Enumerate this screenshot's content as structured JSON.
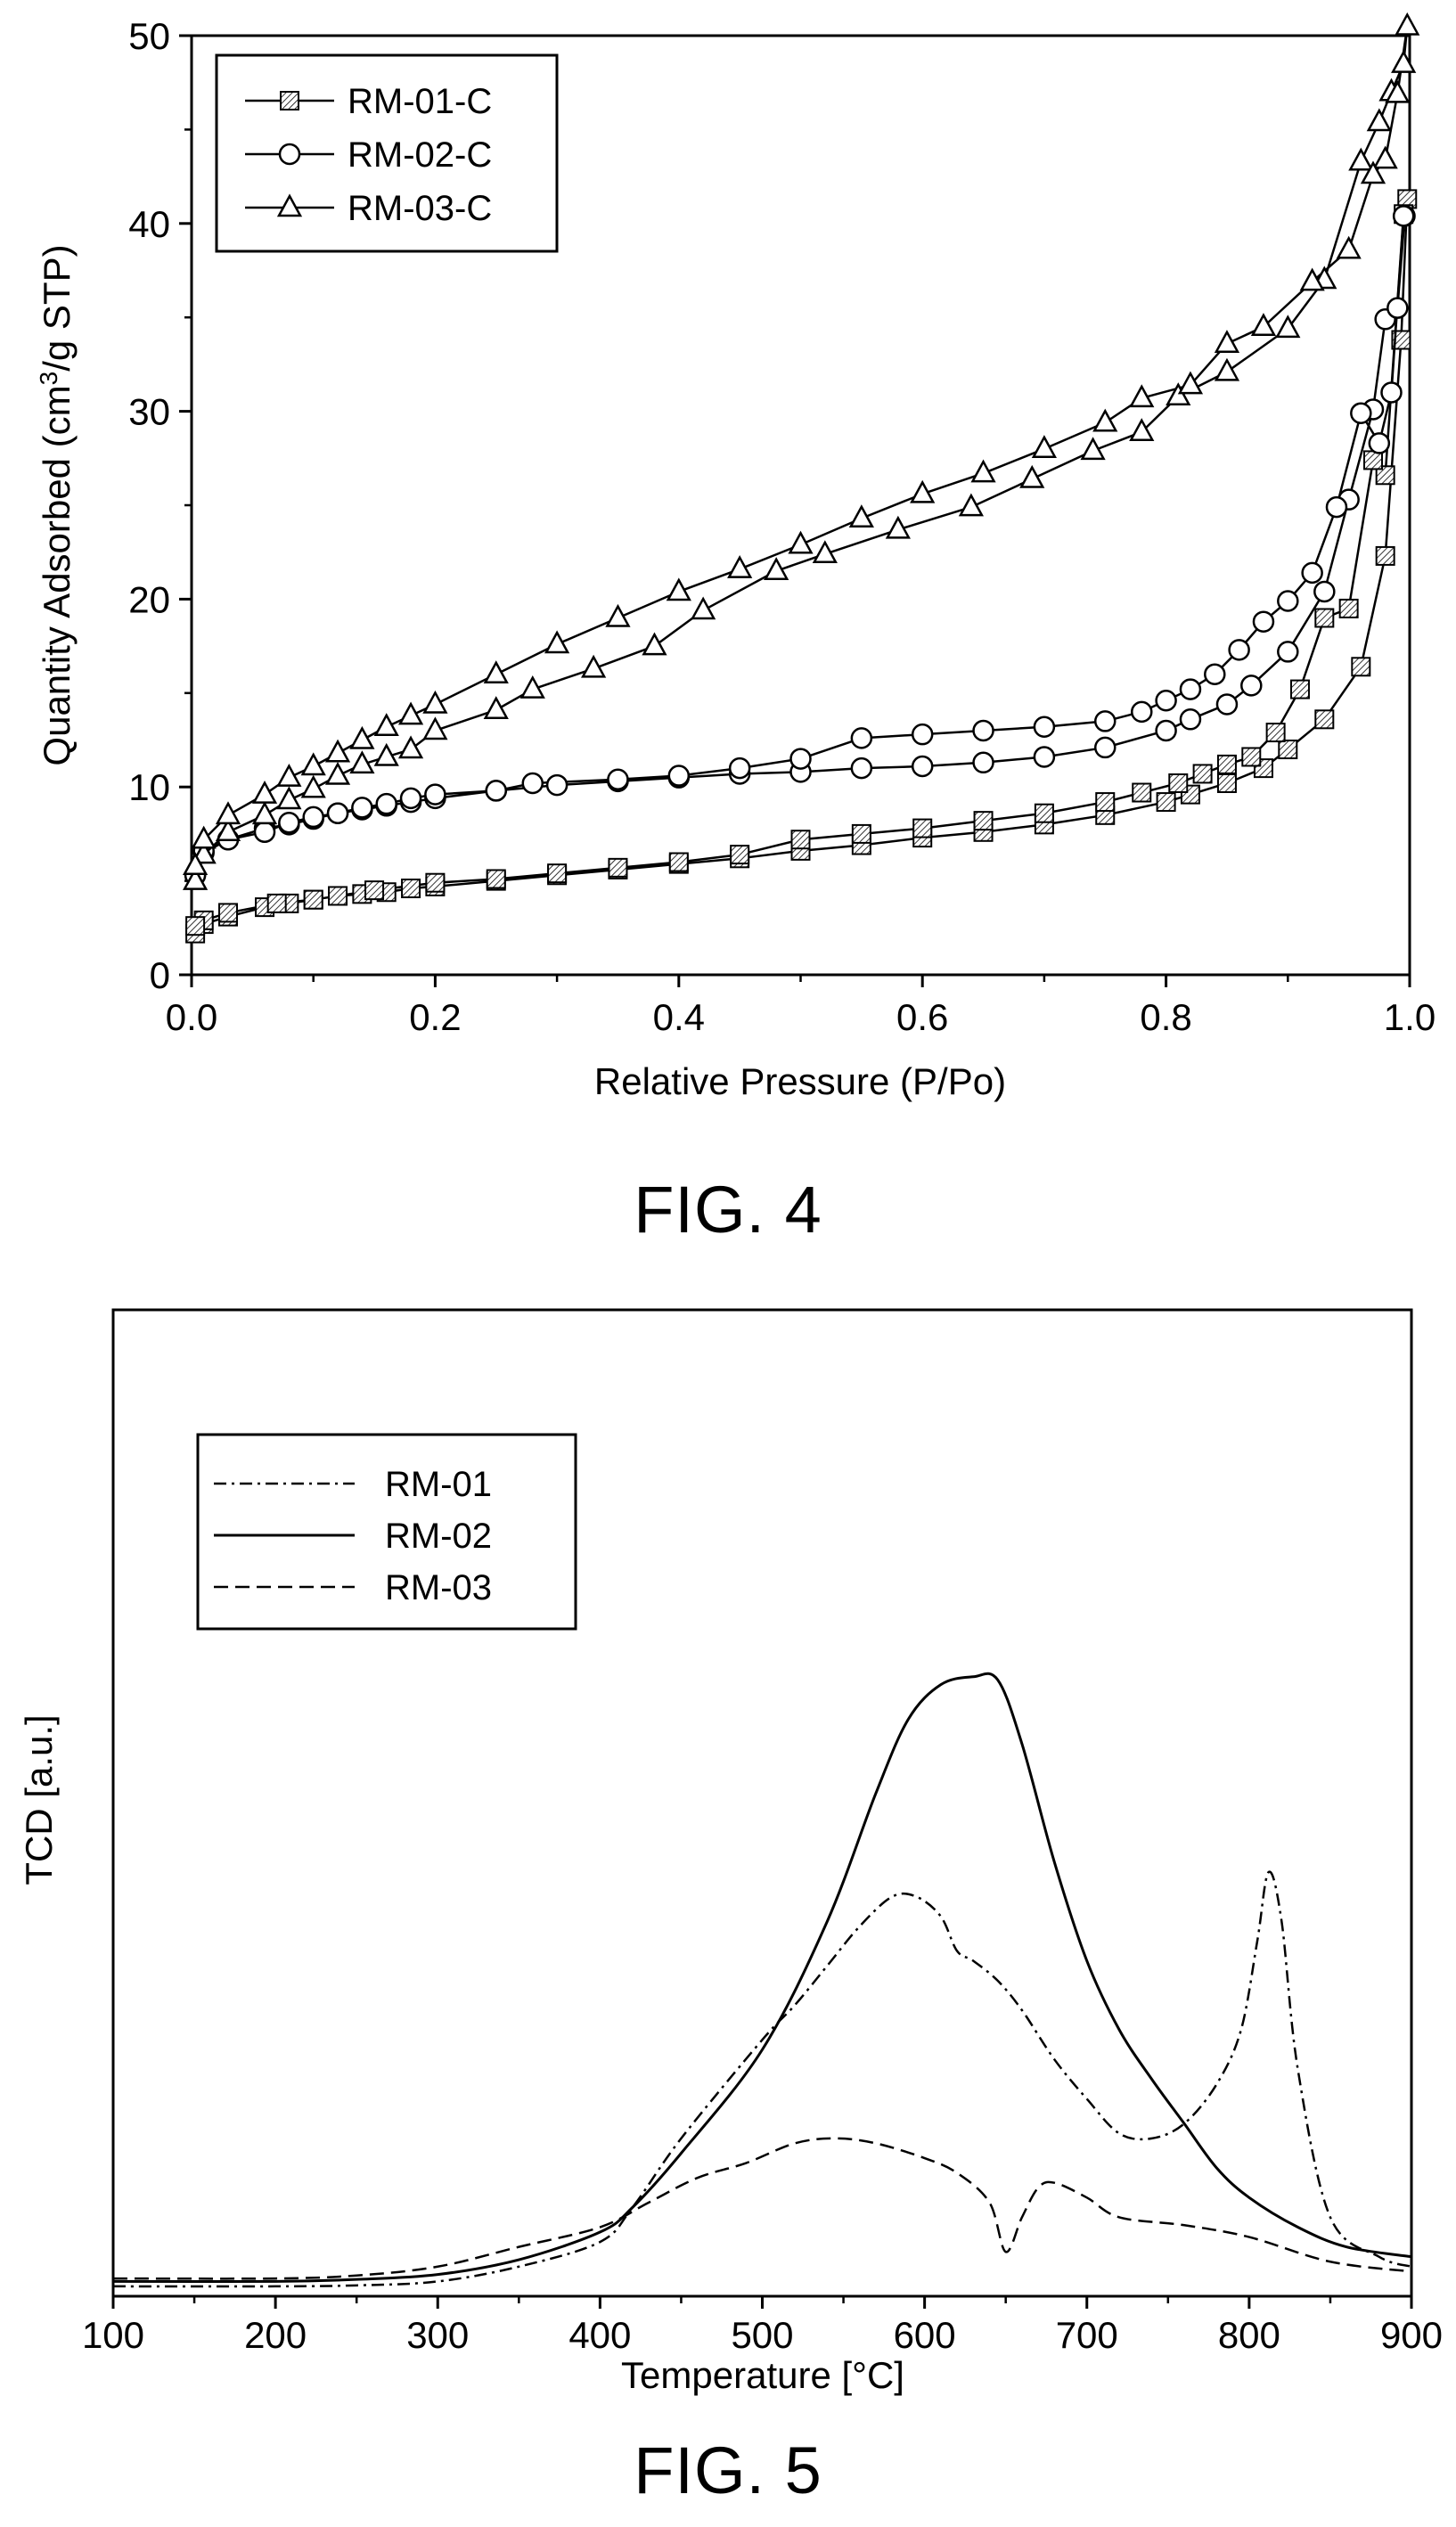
{
  "captions": {
    "fig4": "FIG. 4",
    "fig5": "FIG. 5"
  },
  "chart_data": [
    {
      "type": "line",
      "xlabel": "Relative Pressure (P/Po)",
      "ylabel": "Quantity Adsorbed (cm3/g STP)",
      "xlim": [
        0,
        1.0
      ],
      "ylim": [
        0,
        50
      ],
      "xticks": [
        "0.0",
        "0.2",
        "0.4",
        "0.6",
        "0.8",
        "1.0"
      ],
      "yticks": [
        "0",
        "10",
        "20",
        "30",
        "40",
        "50"
      ],
      "legend_position": "top-left",
      "series": [
        {
          "name": "RM-01-C",
          "marker": "square",
          "x": [
            0.003,
            0.01,
            0.03,
            0.06,
            0.08,
            0.1,
            0.12,
            0.14,
            0.16,
            0.18,
            0.2,
            0.25,
            0.3,
            0.35,
            0.4,
            0.45,
            0.5,
            0.55,
            0.6,
            0.65,
            0.7,
            0.75,
            0.8,
            0.82,
            0.85,
            0.88,
            0.9,
            0.93,
            0.96,
            0.98,
            0.993,
            0.998,
            0.995,
            0.98,
            0.97,
            0.95,
            0.93,
            0.91,
            0.89,
            0.87,
            0.85,
            0.83,
            0.81,
            0.78,
            0.75,
            0.7,
            0.65,
            0.6,
            0.55,
            0.5,
            0.45,
            0.4,
            0.35,
            0.3,
            0.25,
            0.2,
            0.15,
            0.1,
            0.07,
            0.03,
            0.01,
            0.003
          ],
          "y": [
            2.2,
            2.7,
            3.1,
            3.6,
            3.8,
            4.0,
            4.2,
            4.3,
            4.4,
            4.6,
            4.7,
            5.0,
            5.3,
            5.6,
            5.9,
            6.2,
            6.6,
            6.9,
            7.3,
            7.6,
            8.0,
            8.5,
            9.2,
            9.6,
            10.2,
            11.0,
            12.0,
            13.6,
            16.4,
            22.3,
            33.8,
            41.3,
            40.5,
            26.6,
            27.4,
            19.5,
            19.0,
            15.2,
            12.9,
            11.6,
            11.2,
            10.7,
            10.2,
            9.7,
            9.2,
            8.6,
            8.2,
            7.8,
            7.5,
            7.2,
            6.4,
            6.0,
            5.7,
            5.4,
            5.1,
            4.9,
            4.5,
            4.0,
            3.8,
            3.3,
            2.9,
            2.6
          ]
        },
        {
          "name": "RM-02-C",
          "marker": "circle",
          "x": [
            0.003,
            0.01,
            0.03,
            0.06,
            0.08,
            0.1,
            0.12,
            0.14,
            0.16,
            0.18,
            0.2,
            0.25,
            0.3,
            0.35,
            0.4,
            0.45,
            0.5,
            0.55,
            0.6,
            0.65,
            0.7,
            0.75,
            0.8,
            0.82,
            0.85,
            0.87,
            0.9,
            0.93,
            0.95,
            0.97,
            0.98,
            0.99,
            0.996,
            0.995,
            0.985,
            0.975,
            0.96,
            0.94,
            0.92,
            0.9,
            0.88,
            0.86,
            0.84,
            0.82,
            0.8,
            0.78,
            0.75,
            0.7,
            0.65,
            0.6,
            0.55,
            0.5,
            0.45,
            0.4,
            0.35,
            0.28,
            0.25,
            0.2,
            0.18,
            0.16,
            0.14,
            0.12,
            0.1,
            0.08,
            0.06,
            0.03,
            0.01,
            0.003
          ],
          "y": [
            5.3,
            6.5,
            7.2,
            7.8,
            8.0,
            8.3,
            8.6,
            8.8,
            9.0,
            9.2,
            9.4,
            9.8,
            10.1,
            10.3,
            10.5,
            10.7,
            10.8,
            11.0,
            11.1,
            11.3,
            11.6,
            12.1,
            13.0,
            13.6,
            14.4,
            15.4,
            17.2,
            20.4,
            25.3,
            30.1,
            34.9,
            35.5,
            40.4,
            40.4,
            31.0,
            28.3,
            29.9,
            24.9,
            21.4,
            19.9,
            18.8,
            17.3,
            16.0,
            15.2,
            14.6,
            14.0,
            13.5,
            13.2,
            13.0,
            12.8,
            12.6,
            11.5,
            11.0,
            10.6,
            10.4,
            10.2,
            9.8,
            9.6,
            9.4,
            9.1,
            8.9,
            8.6,
            8.4,
            8.1,
            7.6,
            7.2,
            6.6,
            5.3
          ]
        },
        {
          "name": "RM-03-C",
          "marker": "triangle",
          "x": [
            0.003,
            0.01,
            0.03,
            0.06,
            0.08,
            0.1,
            0.12,
            0.14,
            0.16,
            0.18,
            0.2,
            0.25,
            0.28,
            0.33,
            0.38,
            0.42,
            0.48,
            0.52,
            0.58,
            0.64,
            0.69,
            0.74,
            0.78,
            0.81,
            0.85,
            0.9,
            0.93,
            0.96,
            0.975,
            0.985,
            0.995,
            0.998,
            0.99,
            0.98,
            0.97,
            0.95,
            0.92,
            0.88,
            0.85,
            0.82,
            0.78,
            0.75,
            0.7,
            0.65,
            0.6,
            0.55,
            0.5,
            0.45,
            0.4,
            0.35,
            0.3,
            0.25,
            0.2,
            0.18,
            0.16,
            0.14,
            0.12,
            0.1,
            0.08,
            0.06,
            0.03,
            0.01,
            0.003
          ],
          "y": [
            5.0,
            6.4,
            7.6,
            8.5,
            9.3,
            9.9,
            10.6,
            11.2,
            11.6,
            12.0,
            13.0,
            14.1,
            15.2,
            16.3,
            17.5,
            19.4,
            21.5,
            22.4,
            23.7,
            24.9,
            26.4,
            27.9,
            28.9,
            30.8,
            32.1,
            34.4,
            37.0,
            43.3,
            45.4,
            47.0,
            48.5,
            50.5,
            46.9,
            43.4,
            42.6,
            38.6,
            36.9,
            34.5,
            33.6,
            31.4,
            30.7,
            29.4,
            28.0,
            26.7,
            25.6,
            24.3,
            22.9,
            21.6,
            20.4,
            19.0,
            17.6,
            16.0,
            14.4,
            13.8,
            13.2,
            12.5,
            11.8,
            11.1,
            10.5,
            9.6,
            8.5,
            7.2,
            5.8
          ]
        }
      ]
    },
    {
      "type": "line",
      "xlabel": "Temperature [°C]",
      "ylabel": "TCD [a.u.]",
      "xlim": [
        100,
        900
      ],
      "ylim": [
        0,
        1
      ],
      "xticks": [
        "100",
        "200",
        "300",
        "400",
        "500",
        "600",
        "700",
        "800",
        "900"
      ],
      "legend_position": "top-left",
      "series": [
        {
          "name": "RM-01",
          "dash": "dash-dot",
          "x": [
            100,
            200,
            250,
            300,
            350,
            400,
            420,
            450,
            500,
            520,
            540,
            560,
            580,
            595,
            610,
            620,
            630,
            645,
            660,
            680,
            700,
            720,
            740,
            760,
            780,
            795,
            805,
            812,
            820,
            830,
            850,
            880,
            900
          ],
          "y": [
            0.01,
            0.01,
            0.011,
            0.015,
            0.03,
            0.055,
            0.09,
            0.16,
            0.26,
            0.295,
            0.335,
            0.375,
            0.405,
            0.405,
            0.385,
            0.35,
            0.34,
            0.32,
            0.29,
            0.24,
            0.2,
            0.165,
            0.16,
            0.175,
            0.215,
            0.27,
            0.36,
            0.43,
            0.38,
            0.23,
            0.08,
            0.04,
            0.03
          ]
        },
        {
          "name": "RM-02",
          "dash": "solid",
          "x": [
            100,
            200,
            250,
            300,
            350,
            400,
            420,
            450,
            500,
            540,
            570,
            590,
            610,
            630,
            645,
            660,
            680,
            700,
            720,
            740,
            760,
            780,
            800,
            830,
            860,
            900
          ],
          "y": [
            0.015,
            0.015,
            0.017,
            0.022,
            0.037,
            0.065,
            0.09,
            0.145,
            0.25,
            0.38,
            0.51,
            0.585,
            0.62,
            0.628,
            0.625,
            0.56,
            0.44,
            0.34,
            0.27,
            0.22,
            0.175,
            0.13,
            0.1,
            0.07,
            0.05,
            0.04
          ]
        },
        {
          "name": "RM-03",
          "dash": "dashed",
          "x": [
            100,
            200,
            250,
            300,
            350,
            400,
            430,
            460,
            490,
            520,
            545,
            570,
            600,
            620,
            640,
            650,
            660,
            670,
            680,
            700,
            720,
            760,
            800,
            850,
            900
          ],
          "y": [
            0.018,
            0.018,
            0.021,
            0.03,
            0.05,
            0.07,
            0.095,
            0.12,
            0.135,
            0.155,
            0.16,
            0.155,
            0.14,
            0.125,
            0.095,
            0.045,
            0.08,
            0.11,
            0.115,
            0.1,
            0.08,
            0.072,
            0.06,
            0.035,
            0.025
          ]
        }
      ]
    }
  ]
}
